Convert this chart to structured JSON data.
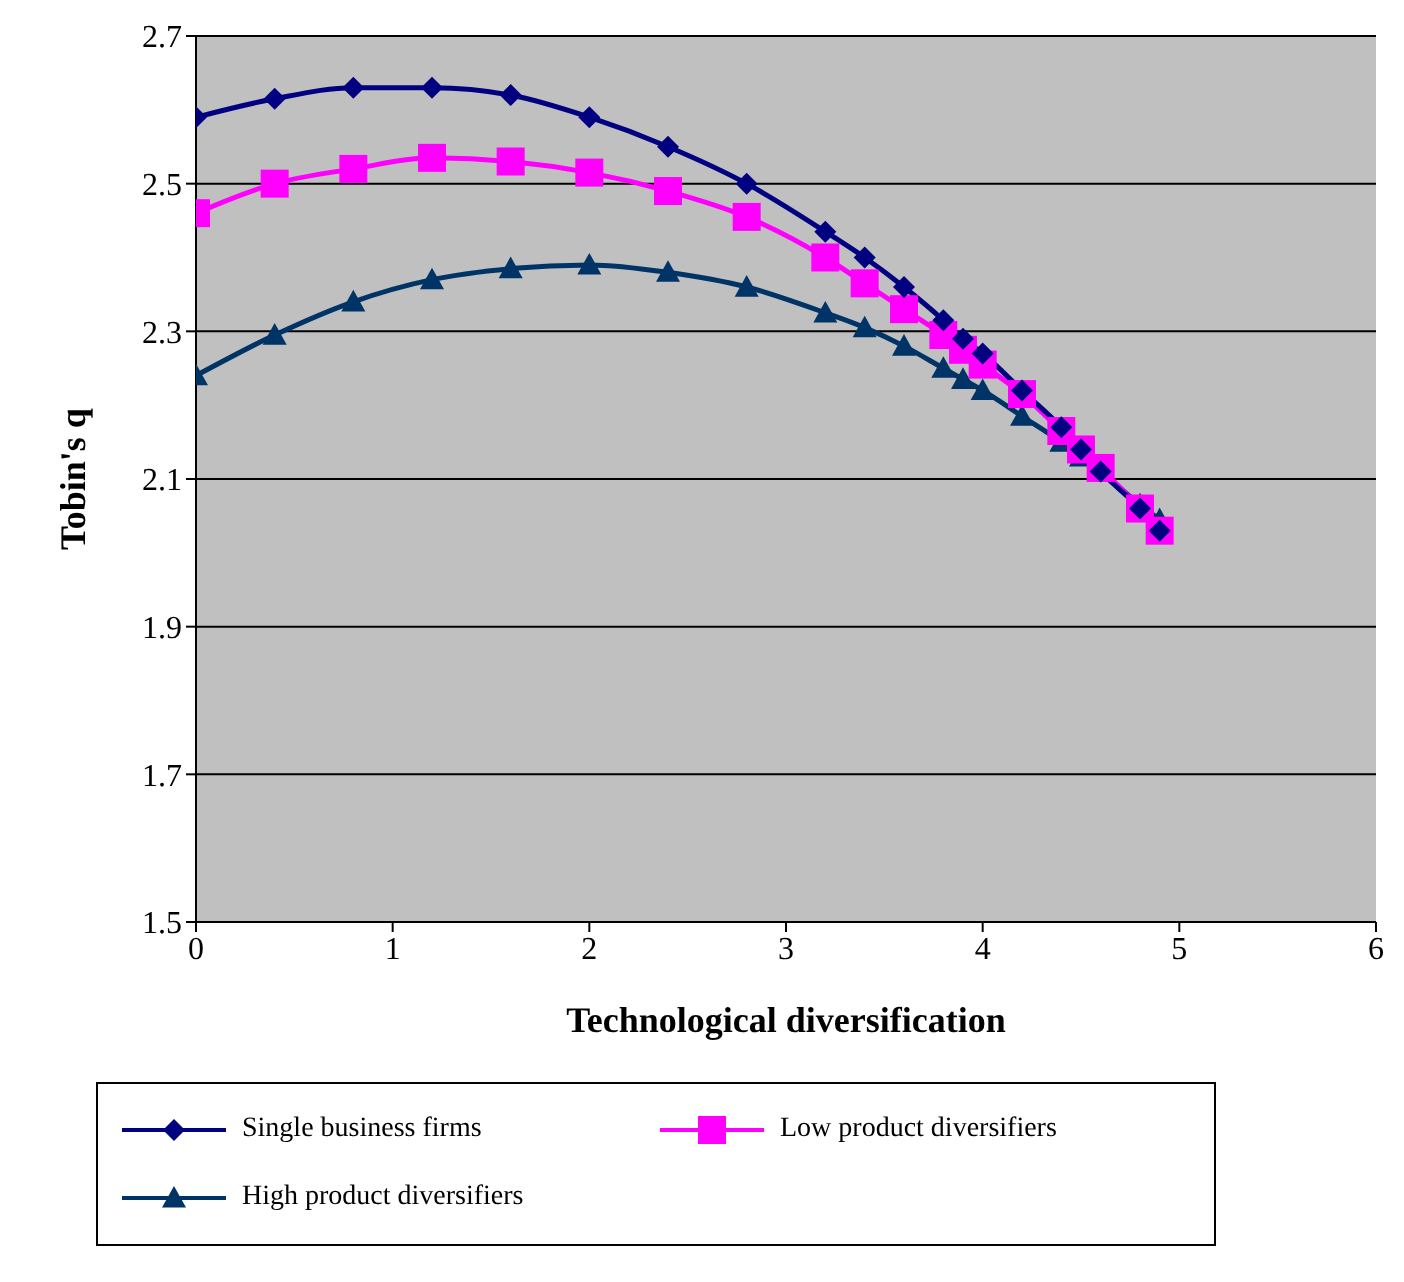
{
  "chart_data": {
    "type": "line",
    "xlabel": "Technological diversification",
    "ylabel": "Tobin's q",
    "xlim": [
      0,
      6
    ],
    "xticks": [
      0,
      1,
      2,
      3,
      4,
      5,
      6
    ],
    "ylim": [
      1.5,
      2.7
    ],
    "yticks": [
      1.5,
      1.7,
      1.9,
      2.1,
      2.3,
      2.5,
      2.7
    ],
    "grid": "y",
    "legend": "bottom",
    "x": [
      0,
      0.4,
      0.8,
      1.2,
      1.6,
      2,
      2.4,
      2.8,
      3.2,
      3.4,
      3.6,
      3.8,
      3.9,
      4,
      4.2,
      4.4,
      4.5,
      4.6,
      4.8,
      4.9
    ],
    "series": [
      {
        "name": "Single business firms",
        "color": "#000080",
        "marker": "diamond",
        "values": [
          2.59,
          2.615,
          2.63,
          2.63,
          2.62,
          2.59,
          2.55,
          2.5,
          2.435,
          2.4,
          2.36,
          2.315,
          2.29,
          2.27,
          2.22,
          2.17,
          2.14,
          2.11,
          2.06,
          2.03
        ]
      },
      {
        "name": "Low product diversifiers",
        "color": "#ff00ff",
        "marker": "square",
        "values": [
          2.46,
          2.5,
          2.52,
          2.535,
          2.53,
          2.515,
          2.49,
          2.455,
          2.4,
          2.365,
          2.33,
          2.295,
          2.275,
          2.255,
          2.215,
          2.165,
          2.14,
          2.115,
          2.06,
          2.03
        ]
      },
      {
        "name": "High product diversifiers",
        "color": "#003366",
        "marker": "triangle",
        "values": [
          2.24,
          2.295,
          2.34,
          2.37,
          2.385,
          2.39,
          2.38,
          2.36,
          2.325,
          2.305,
          2.28,
          2.25,
          2.235,
          2.22,
          2.185,
          2.15,
          2.13,
          2.11,
          2.065,
          2.045
        ]
      }
    ]
  }
}
